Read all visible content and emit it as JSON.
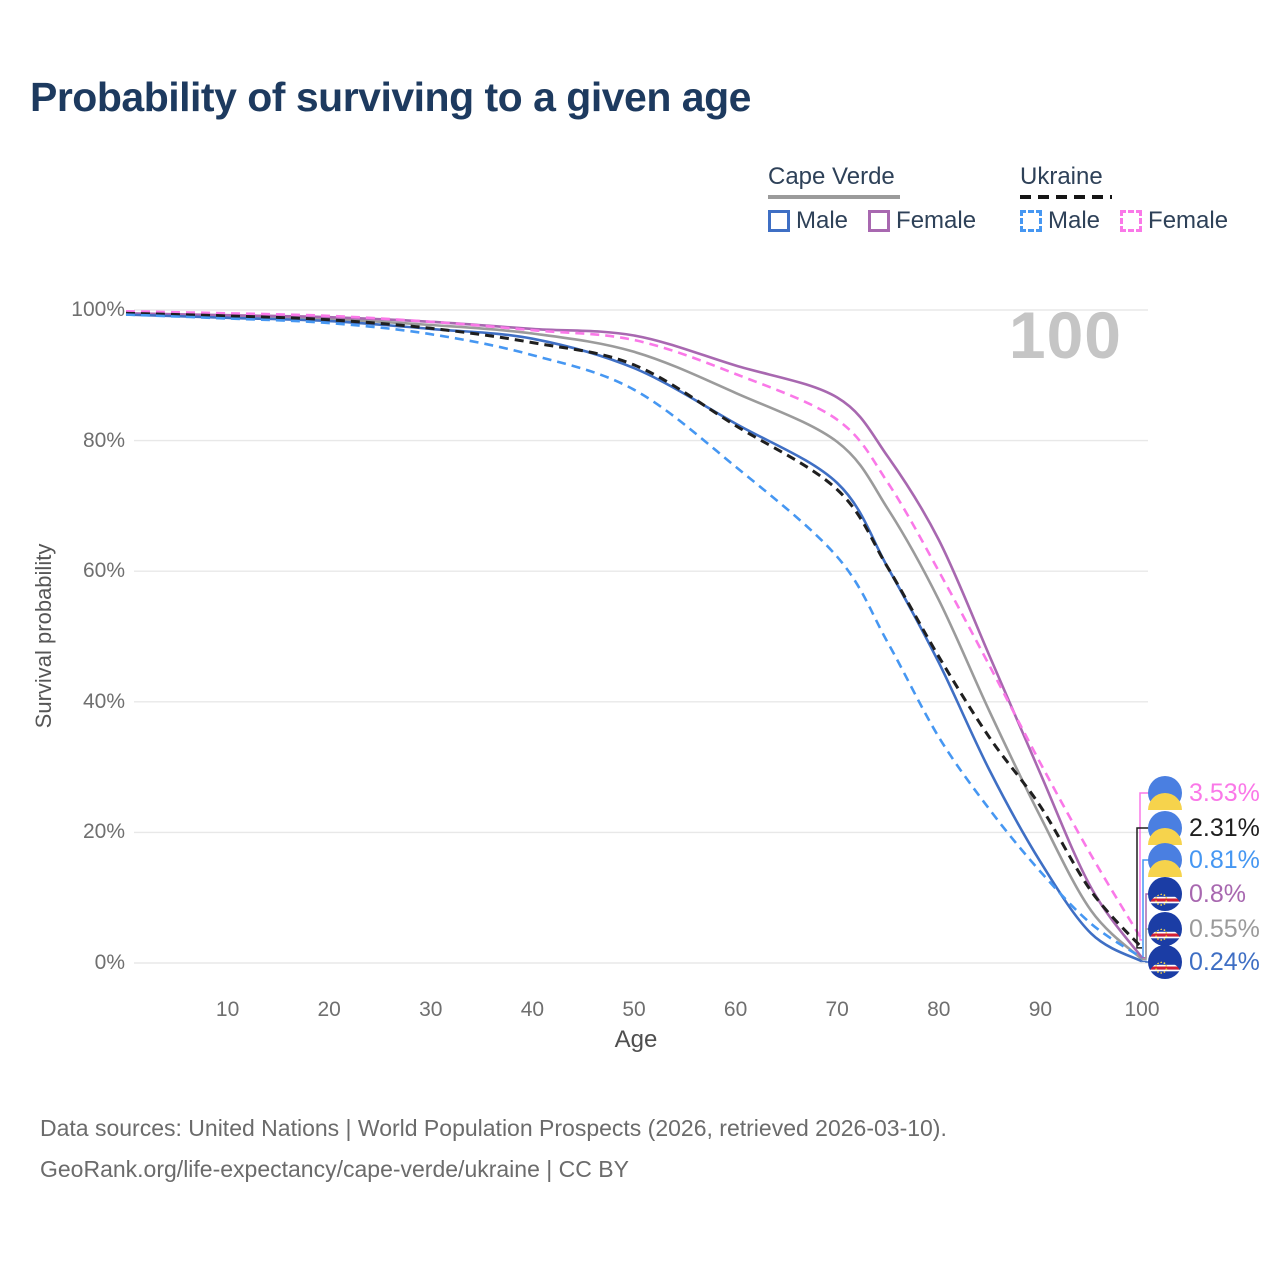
{
  "title": "Probability of surviving to a given age",
  "hover_age_label": "100",
  "legend": {
    "groups": [
      {
        "label": "Cape Verde",
        "line_style": "solid",
        "underline_color": "#9b9b9b",
        "items": [
          {
            "label": "Male",
            "color": "#3f6fc4"
          },
          {
            "label": "Female",
            "color": "#a868b0"
          }
        ]
      },
      {
        "label": "Ukraine",
        "line_style": "dashed",
        "underline_color": "#151515",
        "items": [
          {
            "label": "Male",
            "color": "#4697f2"
          },
          {
            "label": "Female",
            "color": "#fa78e8"
          }
        ]
      }
    ]
  },
  "axes": {
    "y_label": "Survival probability",
    "x_label": "Age",
    "y_ticks": [
      {
        "label": "100%",
        "value": 100
      },
      {
        "label": "80%",
        "value": 80
      },
      {
        "label": "60%",
        "value": 60
      },
      {
        "label": "40%",
        "value": 40
      },
      {
        "label": "20%",
        "value": 20
      },
      {
        "label": "0%",
        "value": 0
      }
    ],
    "x_ticks": [
      {
        "label": "10",
        "value": 10
      },
      {
        "label": "20",
        "value": 20
      },
      {
        "label": "30",
        "value": 30
      },
      {
        "label": "40",
        "value": 40
      },
      {
        "label": "50",
        "value": 50
      },
      {
        "label": "60",
        "value": 60
      },
      {
        "label": "70",
        "value": 70
      },
      {
        "label": "80",
        "value": 80
      },
      {
        "label": "90",
        "value": 90
      },
      {
        "label": "100",
        "value": 100
      }
    ]
  },
  "footer": {
    "line1": "Data sources: United Nations | World Population Prospects (2026, retrieved 2026-03-10).",
    "line2": "GeoRank.org/life-expectancy/cape-verde/ukraine | CC BY"
  },
  "chart_data": {
    "type": "line",
    "title": "Probability of surviving to a given age",
    "xlabel": "Age",
    "ylabel": "Survival probability",
    "x_range": [
      0,
      100
    ],
    "y_range_percent": [
      0,
      100
    ],
    "grid": "horizontal",
    "legend_position": "top-right",
    "ages": [
      0,
      10,
      20,
      30,
      40,
      50,
      60,
      70,
      75,
      80,
      85,
      90,
      95,
      100
    ],
    "series": [
      {
        "id": "cv_total",
        "name": "Cape Verde (both sexes)",
        "country": "cape-verde",
        "sex": "total",
        "line": "solid",
        "color": "#9b9b9b",
        "flag": "cape-verde",
        "end_label": "0.55%",
        "values": [
          99.4,
          99.0,
          98.6,
          97.7,
          96.4,
          93.6,
          87.3,
          79.8,
          69.5,
          55.6,
          38.5,
          22.4,
          8.0,
          0.55
        ]
      },
      {
        "id": "cv_female",
        "name": "Cape Verde Female",
        "country": "cape-verde",
        "sex": "female",
        "line": "solid",
        "color": "#a868b0",
        "flag": "cape-verde",
        "end_label": "0.8%",
        "values": [
          99.5,
          99.2,
          98.9,
          98.2,
          97.1,
          96.1,
          91.5,
          86.6,
          77.5,
          64.8,
          47.0,
          29.0,
          11.5,
          0.8
        ]
      },
      {
        "id": "ua_female",
        "name": "Ukraine Female",
        "country": "ukraine",
        "sex": "female",
        "line": "dashed",
        "color": "#fa78e8",
        "flag": "ukraine",
        "end_label": "3.53%",
        "values": [
          99.8,
          99.5,
          99.1,
          98.2,
          96.9,
          95.4,
          90.2,
          83.2,
          73.5,
          60.0,
          45.5,
          30.6,
          16.5,
          3.53
        ]
      },
      {
        "id": "cv_male",
        "name": "Cape Verde Male",
        "country": "cape-verde",
        "sex": "male",
        "line": "solid",
        "color": "#3f6fc4",
        "flag": "cape-verde",
        "end_label": "0.24%",
        "values": [
          99.3,
          98.8,
          98.3,
          97.1,
          95.6,
          91.1,
          82.6,
          73.5,
          60.5,
          46.0,
          29.5,
          15.5,
          4.5,
          0.24
        ]
      },
      {
        "id": "ua_total",
        "name": "Ukraine (both sexes)",
        "country": "ukraine",
        "sex": "total",
        "line": "dashed",
        "color": "#1f1f1f",
        "flag": "ukraine",
        "end_label": "2.31%",
        "values": [
          99.5,
          99.1,
          98.5,
          97.2,
          95.0,
          91.6,
          82.3,
          72.5,
          60.5,
          46.9,
          34.5,
          24.0,
          11.0,
          2.31
        ]
      },
      {
        "id": "ua_male",
        "name": "Ukraine Male",
        "country": "ukraine",
        "sex": "male",
        "line": "dashed",
        "color": "#4697f2",
        "flag": "ukraine",
        "end_label": "0.81%",
        "values": [
          99.3,
          98.7,
          98.0,
          96.3,
          93.1,
          87.8,
          76.0,
          62.2,
          49.0,
          34.6,
          23.5,
          14.0,
          6.0,
          0.81
        ]
      }
    ]
  }
}
